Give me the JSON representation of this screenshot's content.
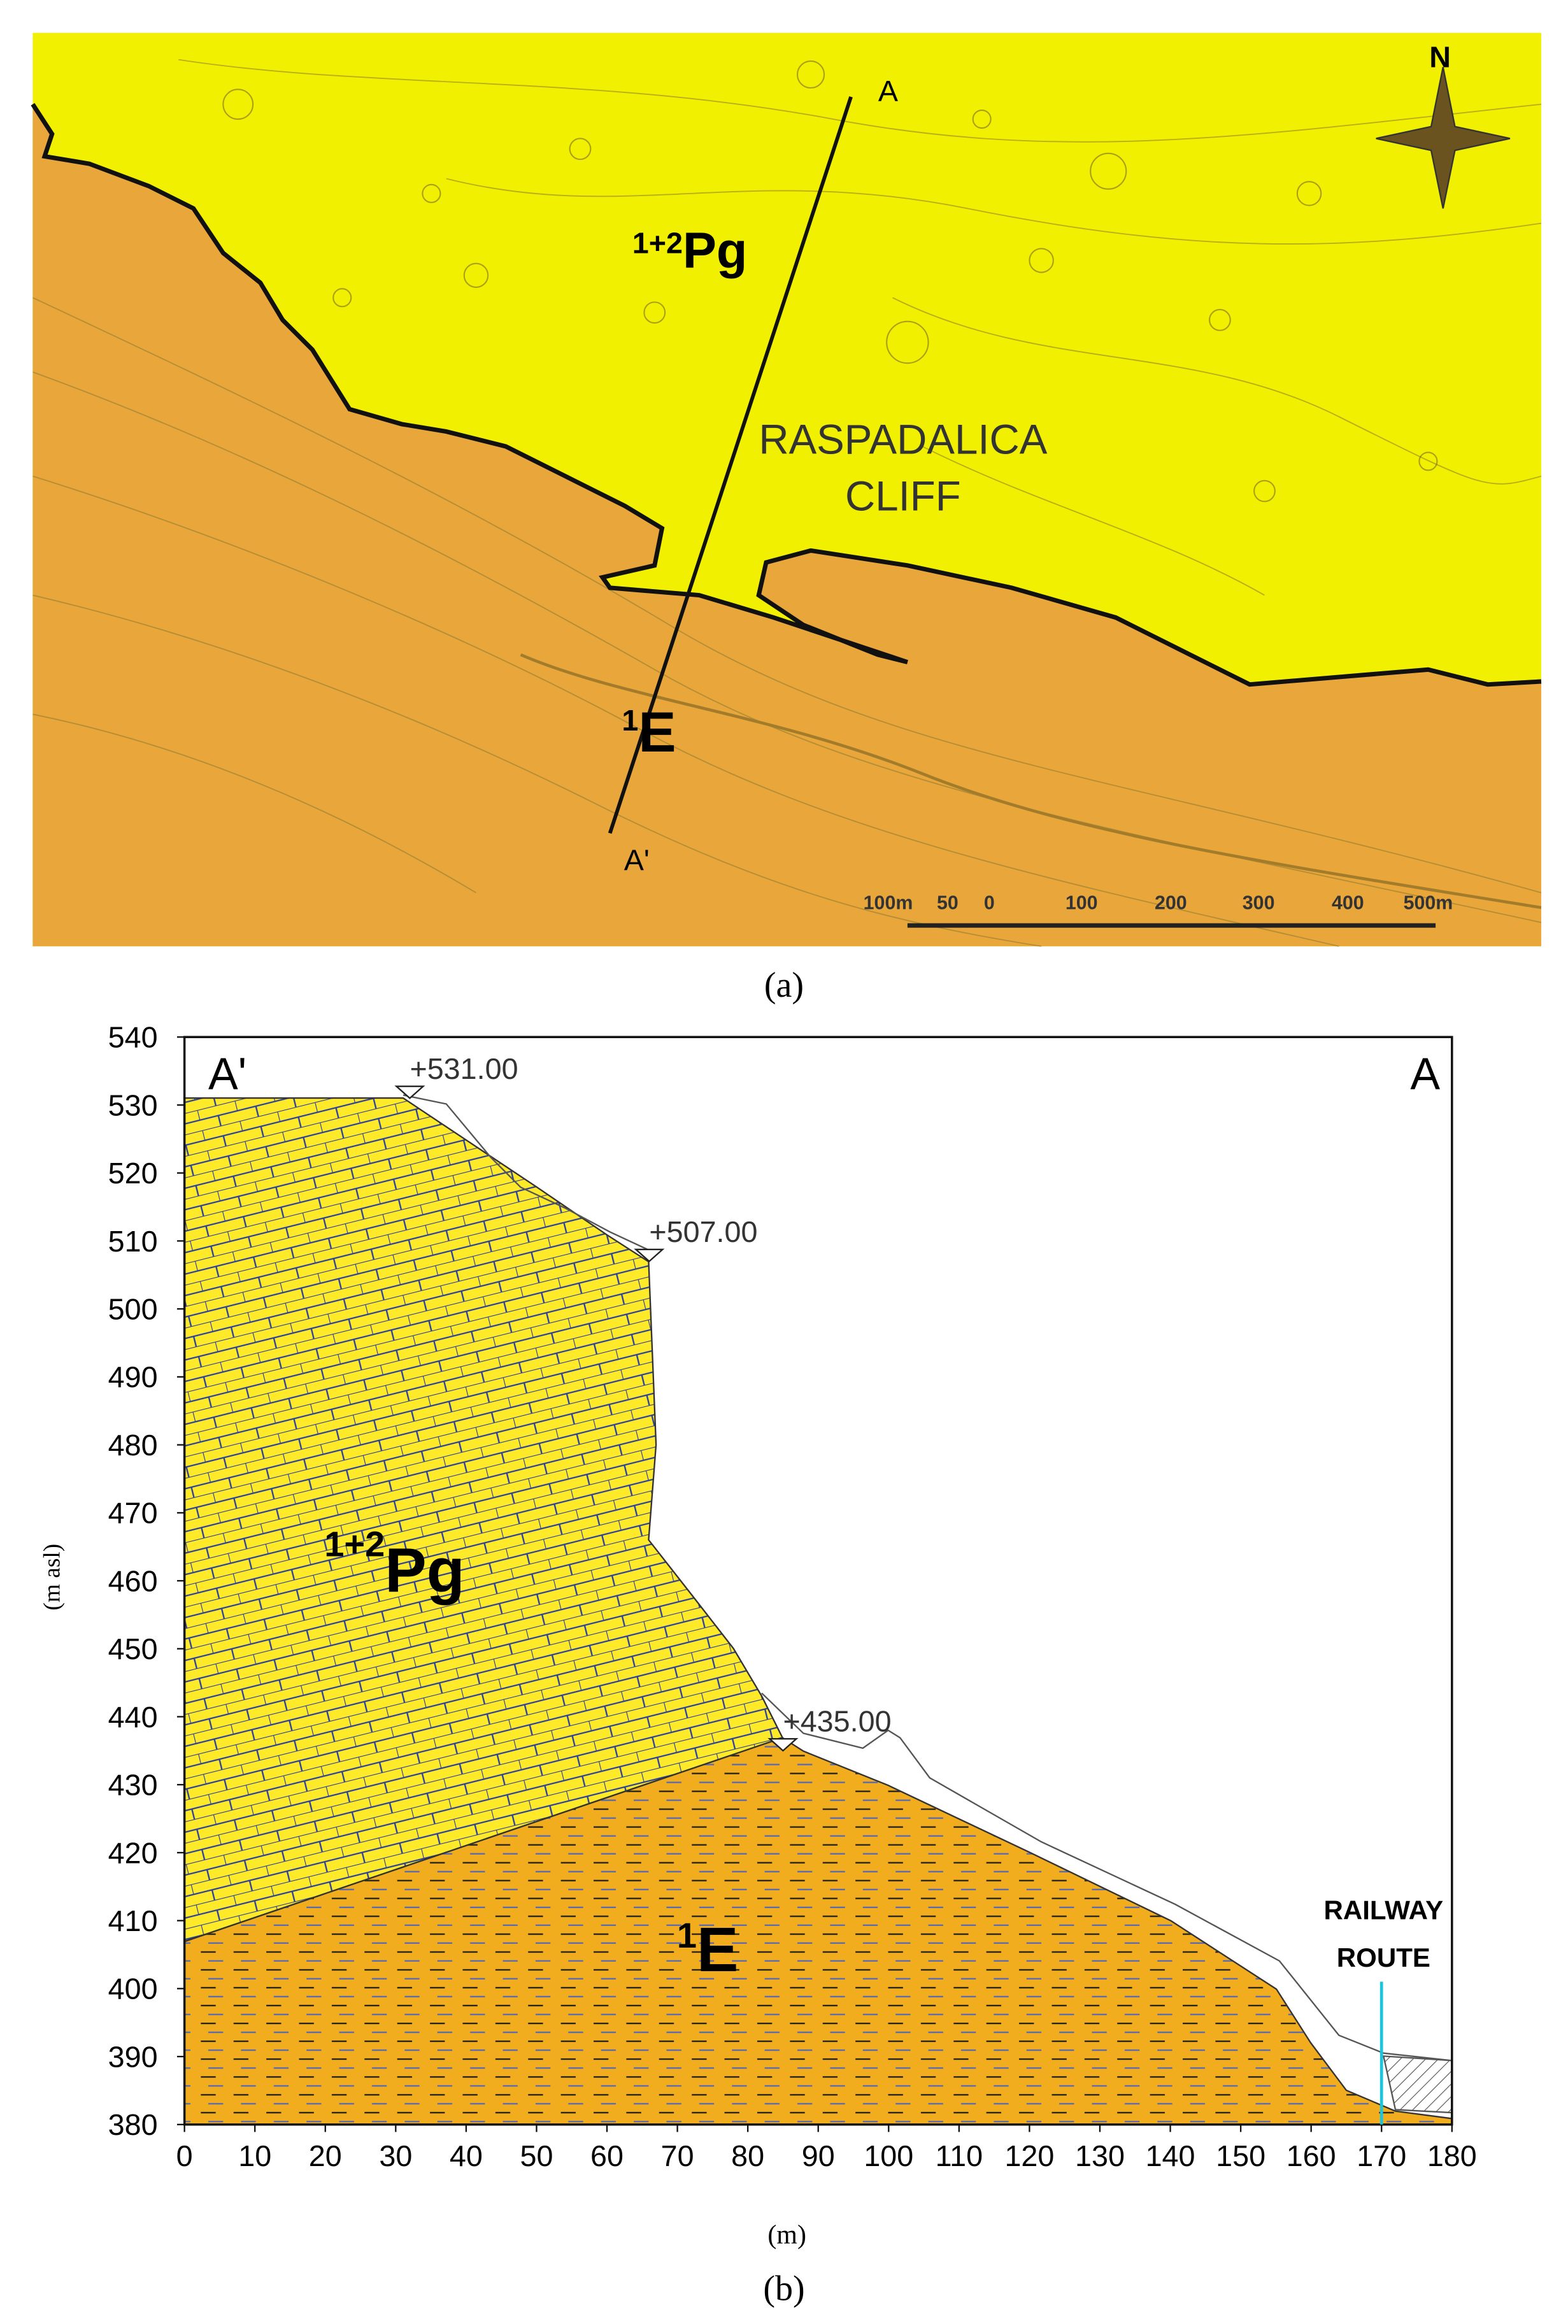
{
  "map": {
    "point_a": "A",
    "point_a_prime": "A'",
    "formation_upper": {
      "sup": "1+2",
      "main": "Pg"
    },
    "formation_lower": {
      "sup": "1",
      "main": "E"
    },
    "place_line1": "RASPADALICA",
    "place_line2": "CLIFF",
    "north": "N",
    "scale_labels": [
      "100m",
      "50",
      "0",
      "100",
      "200",
      "300",
      "400",
      "500m"
    ],
    "caption": "(a)"
  },
  "section": {
    "xlim": [
      0,
      180
    ],
    "ylim": [
      380,
      540
    ],
    "xticks": [
      0,
      10,
      20,
      30,
      40,
      50,
      60,
      70,
      80,
      90,
      100,
      110,
      120,
      130,
      140,
      150,
      160,
      170,
      180
    ],
    "yticks": [
      380,
      390,
      400,
      410,
      420,
      430,
      440,
      450,
      460,
      470,
      480,
      490,
      500,
      510,
      520,
      530,
      540
    ],
    "ylabel": "(m asl)",
    "xlabel": "(m)",
    "left_end": "A'",
    "right_end": "A",
    "markers": [
      {
        "station": 32,
        "value": 531,
        "label": "+531.00"
      },
      {
        "station": 66,
        "value": 507,
        "label": "+507.00"
      },
      {
        "station": 85,
        "value": 435,
        "label": "+435.00"
      }
    ],
    "formation_upper": {
      "sup": "1+2",
      "main": "Pg"
    },
    "formation_lower": {
      "sup": "1",
      "main": "E"
    },
    "railway_line1": "RAILWAY",
    "railway_line2": "ROUTE",
    "railway_station": 170,
    "caption": "(b)"
  }
}
